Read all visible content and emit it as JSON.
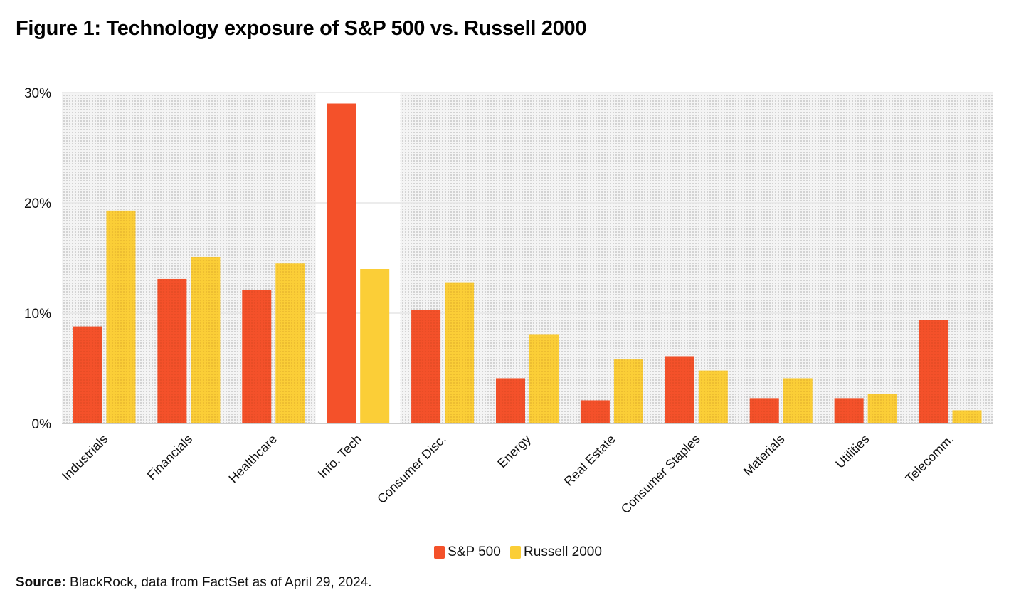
{
  "title": "Figure 1: Technology exposure of S&P 500 vs. Russell 2000",
  "source_label": "Source:",
  "source_text": "BlackRock, data from FactSet as of April 29, 2024.",
  "chart_data": {
    "type": "bar",
    "title": "Figure 1: Technology exposure of S&P 500 vs. Russell 2000",
    "xlabel": "",
    "ylabel": "",
    "ylim": [
      0,
      30
    ],
    "yticks": [
      0,
      10,
      20,
      30
    ],
    "ytick_labels": [
      "0%",
      "10%",
      "20%",
      "30%"
    ],
    "grid": true,
    "legend_position": "bottom-center",
    "highlight_category": "Info. Tech",
    "categories": [
      "Industrials",
      "Financials",
      "Healthcare",
      "Info. Tech",
      "Consumer Disc.",
      "Energy",
      "Real Estate",
      "Consumer Staples",
      "Materials",
      "Utilities",
      "Telecomm."
    ],
    "series": [
      {
        "name": "S&P 500",
        "color": "#F4512A",
        "values": [
          8.8,
          13.1,
          12.1,
          29.0,
          10.3,
          4.1,
          2.1,
          6.1,
          2.3,
          2.3,
          9.4
        ]
      },
      {
        "name": "Russell 2000",
        "color": "#FBCE37",
        "values": [
          19.3,
          15.1,
          14.5,
          14.0,
          12.8,
          8.1,
          5.8,
          4.8,
          4.1,
          2.7,
          1.2
        ]
      }
    ]
  }
}
